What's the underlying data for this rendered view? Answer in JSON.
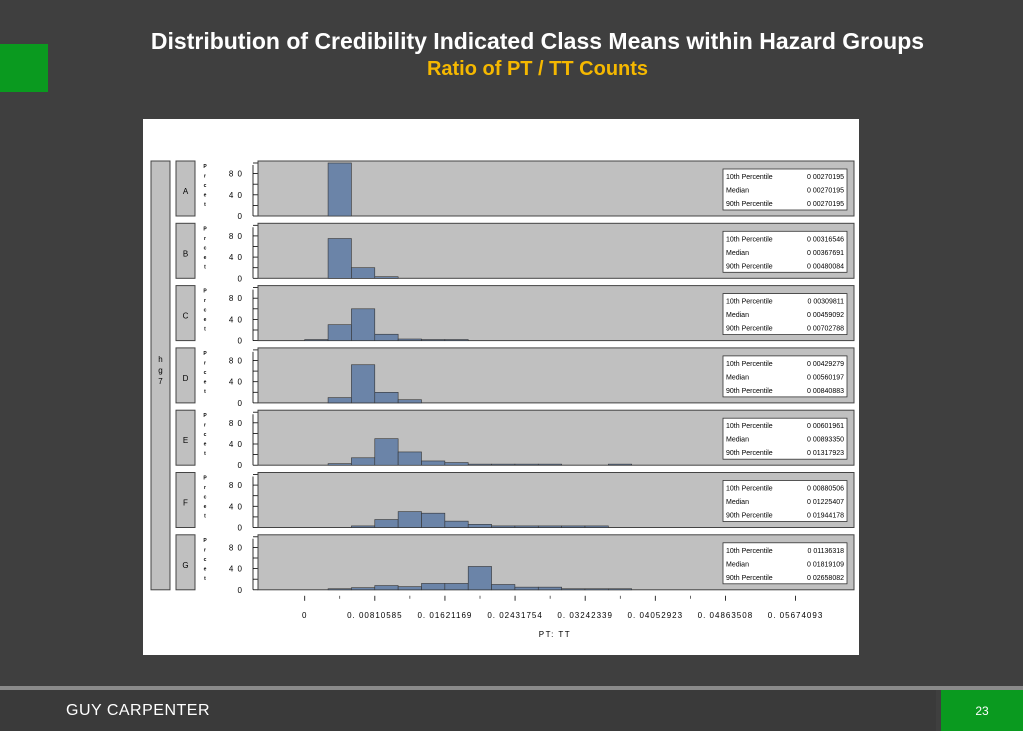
{
  "slide": {
    "title": "Distribution of Credibility Indicated Class Means within Hazard Groups",
    "subtitle": "Ratio of PT / TT Counts",
    "footer": "GUY CARPENTER",
    "page_number": "23"
  },
  "chart_data": {
    "type": "bar",
    "xlabel": "PT: TT",
    "strip_label": "h\ng\n7",
    "panel_ylabel": "P\nr\nc\ne\nt",
    "x_ticks": [
      "0",
      "0. 00810585",
      "0. 01621169",
      "0. 02431754",
      "0. 03242339",
      "0. 04052923",
      "0. 04863508",
      "0. 05674093"
    ],
    "x_tick_values": [
      0,
      0.00810585,
      0.01621169,
      0.02431754,
      0.03242339,
      0.04052923,
      0.04863508,
      0.05674093
    ],
    "y_ticks": [
      "0",
      "4 0",
      "8 0"
    ],
    "y_tick_values": [
      0,
      40,
      80
    ],
    "ylim": [
      0,
      100
    ],
    "bin_edges": [
      0,
      0.0027,
      0.0054,
      0.0081,
      0.0108,
      0.0135,
      0.0162,
      0.0189,
      0.0216,
      0.0243,
      0.027,
      0.0297,
      0.0324,
      0.0351,
      0.0378,
      0.0405,
      0.0432
    ],
    "stat_labels": [
      "10th Percentile",
      "Median",
      "90th Percentile"
    ],
    "colors": {
      "bar": "#6b84a8",
      "panel_bg": "#c0c0c0",
      "stat_box": "#ffffff"
    },
    "panels": [
      {
        "name": "A",
        "values": [
          0,
          100,
          0,
          0,
          0,
          0,
          0,
          0,
          0,
          0,
          0,
          0,
          0,
          0,
          0,
          0
        ],
        "stats": [
          "0 00270195",
          "0 00270195",
          "0 00270195"
        ]
      },
      {
        "name": "B",
        "values": [
          0,
          75,
          20,
          3,
          0,
          0,
          0,
          0,
          0,
          0,
          0,
          0,
          0,
          0,
          0,
          0
        ],
        "stats": [
          "0 00316546",
          "0 00367691",
          "0 00480084"
        ]
      },
      {
        "name": "C",
        "values": [
          2,
          30,
          60,
          12,
          3,
          2,
          2,
          0,
          0,
          0,
          0,
          0,
          0,
          0,
          0,
          0
        ],
        "stats": [
          "0 00309811",
          "0 00459092",
          "0 00702788"
        ]
      },
      {
        "name": "D",
        "values": [
          0,
          10,
          72,
          20,
          6,
          0,
          0,
          0,
          0,
          0,
          0,
          0,
          0,
          0,
          0,
          0
        ],
        "stats": [
          "0 00429279",
          "0 00560197",
          "0 00840883"
        ]
      },
      {
        "name": "E",
        "values": [
          0,
          3,
          14,
          50,
          25,
          8,
          5,
          2,
          2,
          2,
          2,
          0,
          0,
          2,
          0,
          0
        ],
        "stats": [
          "0 00601961",
          "0 00893350",
          "0 01317923"
        ]
      },
      {
        "name": "F",
        "values": [
          0,
          0,
          3,
          15,
          30,
          27,
          12,
          6,
          3,
          3,
          3,
          3,
          3,
          0,
          0,
          0
        ],
        "stats": [
          "0 00880506",
          "0 01225407",
          "0 01944178"
        ]
      },
      {
        "name": "G",
        "values": [
          0,
          2,
          4,
          8,
          6,
          12,
          12,
          44,
          10,
          5,
          5,
          2,
          2,
          2,
          0,
          0
        ],
        "stats": [
          "0 01136318",
          "0 01819109",
          "0 02658082"
        ]
      }
    ]
  }
}
